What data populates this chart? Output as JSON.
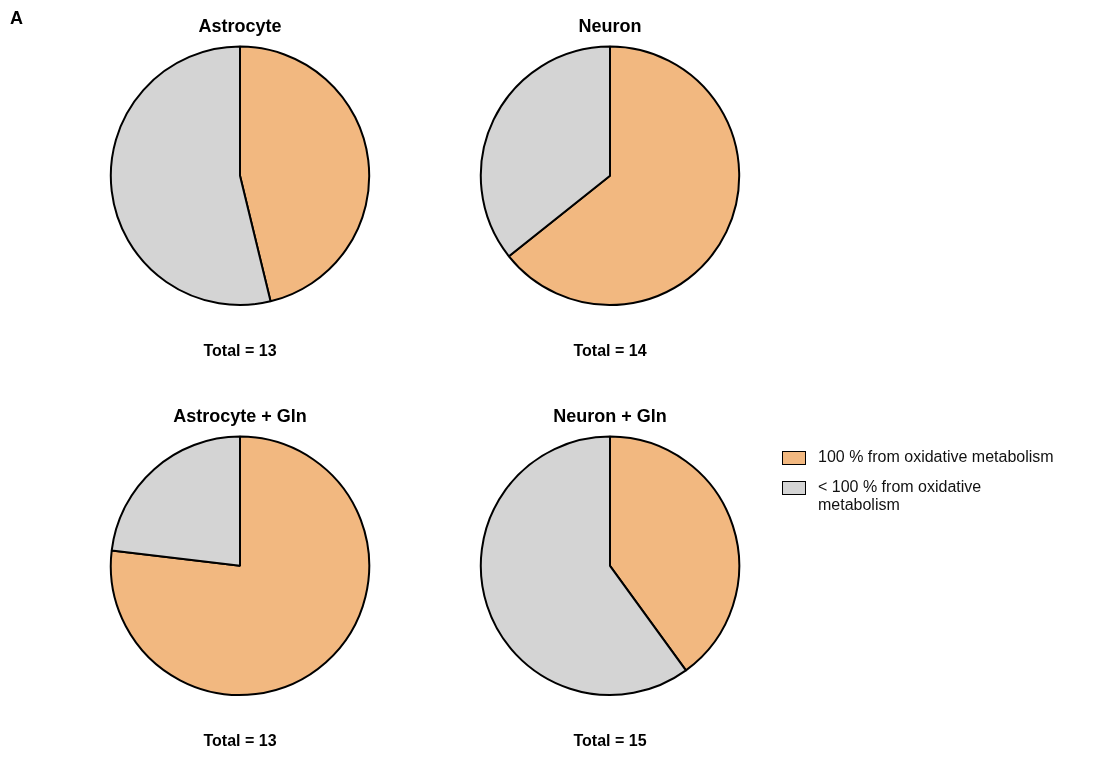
{
  "chart_data": [
    {
      "type": "pie",
      "title": "Astrocyte",
      "categories": [
        null,
        null
      ],
      "values": [
        46.2,
        53.8
      ],
      "colors": [
        "#f2b880",
        "#d4d4d4"
      ],
      "annotations": [
        "A",
        "Total = 13"
      ],
      "legend": false
    },
    {
      "type": "pie",
      "title": "Neuron",
      "categories": [
        null,
        null
      ],
      "values": [
        64.3,
        35.7
      ],
      "colors": [
        "#f2b880",
        "#d4d4d4"
      ],
      "annotations": [
        "Total = 14"
      ],
      "legend": false
    },
    {
      "type": "pie",
      "title": "Astrocyte + Gln",
      "categories": [
        null,
        null
      ],
      "values": [
        76.9,
        23.1
      ],
      "colors": [
        "#f2b880",
        "#d4d4d4"
      ],
      "annotations": [
        "Total = 13"
      ],
      "legend": false
    },
    {
      "type": "pie",
      "title": "Neuron + Gln",
      "categories": [
        "100 % from oxidative metabolism",
        "< 100 % from oxidative metabolism"
      ],
      "values": [
        40,
        60
      ],
      "colors": [
        "#f2b880",
        "#d4d4d4"
      ],
      "annotations": [
        "Total = 15"
      ],
      "legend": "right"
    }
  ]
}
